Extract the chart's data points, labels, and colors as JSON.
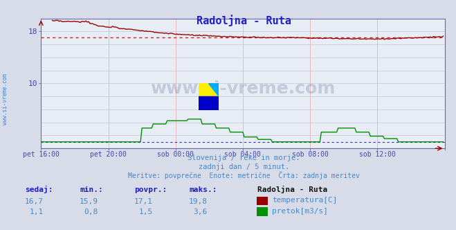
{
  "title": "Radoljna - Ruta",
  "bg_color": "#d8dce8",
  "plot_bg_color": "#e8ecf4",
  "grid_color_h": "#c0c4d8",
  "grid_color_v": "#e8b0b0",
  "title_color": "#2020cc",
  "axis_label_color": "#4444aa",
  "text_color": "#4488cc",
  "watermark": "www.si-vreme.com",
  "xlabel_ticks": [
    "pet 16:00",
    "pet 20:00",
    "sob 00:00",
    "sob 04:00",
    "sob 08:00",
    "sob 12:00"
  ],
  "xlim": [
    0,
    287
  ],
  "ylim": [
    0,
    20
  ],
  "yticks": [
    10,
    18
  ],
  "temp_color": "#990000",
  "flow_color": "#009000",
  "avg_line_color": "#cc2222",
  "avg_value": 17.1,
  "subtitle1": "Slovenija / reke in morje.",
  "subtitle2": "zadnji dan / 5 minut.",
  "subtitle3": "Meritve: povprečne  Enote: metrične  Črta: zadnja meritev",
  "legend_title": "Radoljna - Ruta",
  "label_sedaj": "sedaj:",
  "label_min": "min.:",
  "label_povpr": "povpr.:",
  "label_maks": "maks.:",
  "temp_sedaj": "16,7",
  "temp_min": "15,9",
  "temp_povpr": "17,1",
  "temp_maks": "19,8",
  "flow_sedaj": "1,1",
  "flow_min": "0,8",
  "flow_povpr": "1,5",
  "flow_maks": "3,6",
  "label_temp": "temperatura[C]",
  "label_flow": "pretok[m3/s]",
  "left_label": "www.si-vreme.com",
  "spine_color": "#6666aa",
  "flow_baseline_color": "#0000cc",
  "flow_avg_color": "#009000"
}
